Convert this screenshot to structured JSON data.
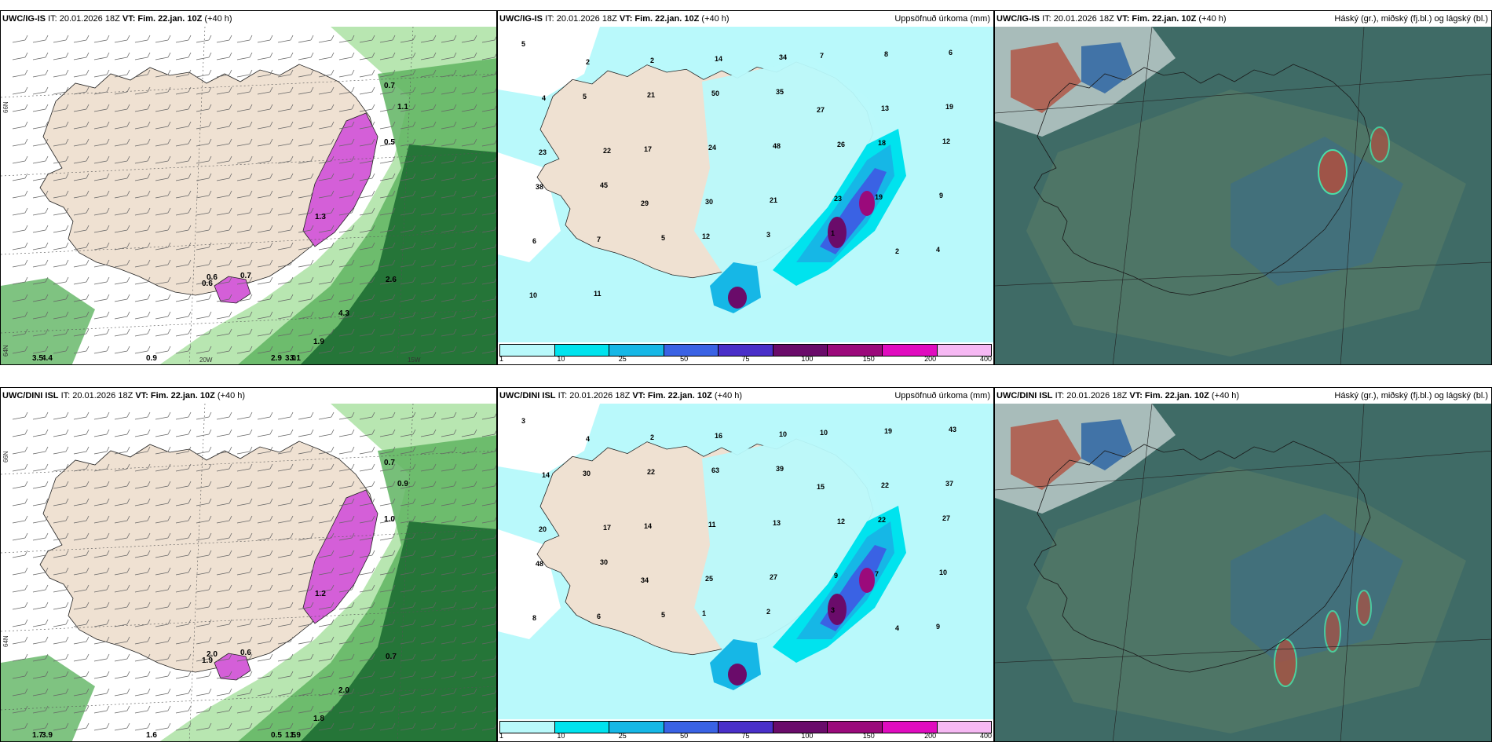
{
  "panels": [
    {
      "id": "top-wind",
      "model": "UWC/IG-IS",
      "it": "IT: 20.01.2026 18Z",
      "vt": "VT: Fim. 22.jan. 10Z",
      "lead": "(+40 h)",
      "right_title": ""
    },
    {
      "id": "top-precip",
      "model": "UWC/IG-IS",
      "it": "IT: 20.01.2026 18Z",
      "vt": "VT: Fim. 22.jan. 10Z",
      "lead": "(+40 h)",
      "right_title": "Uppsöfnuð úrkoma (mm)"
    },
    {
      "id": "top-cloud",
      "model": "UWC/IG-IS",
      "it": "IT: 20.01.2026 18Z",
      "vt": "VT: Fim. 22.jan. 10Z",
      "lead": "(+40 h)",
      "right_title": "Háský (gr.), miðský (fj.bl.) og lágský (bl.)"
    },
    {
      "id": "bottom-wind",
      "model": "UWC/DINI ISL",
      "it": "IT: 20.01.2026 18Z",
      "vt": "VT: Fim. 22.jan. 10Z",
      "lead": "(+40 h)",
      "right_title": ""
    },
    {
      "id": "bottom-precip",
      "model": "UWC/DINI ISL",
      "it": "IT: 20.01.2026 18Z",
      "vt": "VT: Fim. 22.jan. 10Z",
      "lead": "(+40 h)",
      "right_title": "Uppsöfnuð úrkoma (mm)"
    },
    {
      "id": "bottom-cloud",
      "model": "UWC/DINI ISL",
      "it": "IT: 20.01.2026 18Z",
      "vt": "VT: Fim. 22.jan. 10Z",
      "lead": "(+40 h)",
      "right_title": "Háský (gr.), miðský (fj.bl.) og lágský (bl.)"
    }
  ],
  "axis_labels": {
    "lat66": "66N",
    "lat64": "64N",
    "lon20": "20W",
    "lon15": "15W"
  },
  "precip_colorbar": {
    "labels": [
      "1",
      "10",
      "25",
      "50",
      "75",
      "100",
      "150",
      "200",
      "400"
    ],
    "colors": [
      "#b9f9fb",
      "#00e3ee",
      "#16b7e6",
      "#3a62e4",
      "#4a2fc9",
      "#6a0b6a",
      "#9b0a7b",
      "#e00cbf",
      "#f6b8f3"
    ]
  },
  "colors": {
    "land": "#efe1d2",
    "precip_light": "#b9f9fb",
    "wind_green_light": "#b8e6b1",
    "wind_green_mid": "#5fb461",
    "wind_green_dark": "#1d6d32",
    "snow_magenta": "#d45fd8",
    "cloud_base": "#3f6b66",
    "cloud_mid": "#527867",
    "cloud_blue": "#2f66a3",
    "cloud_red": "#b05040"
  },
  "wind_labels_top": [
    "0.7",
    "1.1",
    "0.5",
    "0.6",
    "1.3",
    "2.6",
    "4.3",
    "1.9",
    "0.9",
    "0.6",
    "0.7",
    "2.9",
    "3.1",
    "3.0",
    "3.5",
    "4.4"
  ],
  "wind_labels_bottom": [
    "0.7",
    "0.9",
    "1.0",
    "2.0",
    "1.2",
    "0.7",
    "2.0",
    "1.8",
    "1.6",
    "1.9",
    "0.6",
    "0.5",
    "1.9",
    "1.5",
    "1.7",
    "3.9"
  ],
  "precip_labels_top": [
    "5",
    "2",
    "2",
    "14",
    "34",
    "7",
    "8",
    "6",
    "4",
    "5",
    "21",
    "50",
    "35",
    "27",
    "13",
    "19",
    "23",
    "22",
    "17",
    "24",
    "48",
    "26",
    "18",
    "12",
    "38",
    "45",
    "29",
    "30",
    "21",
    "23",
    "19",
    "9",
    "6",
    "7",
    "5",
    "12",
    "3",
    "1",
    "2",
    "4",
    "10",
    "11"
  ],
  "precip_labels_bottom": [
    "3",
    "4",
    "2",
    "16",
    "10",
    "10",
    "19",
    "43",
    "14",
    "30",
    "22",
    "63",
    "39",
    "15",
    "22",
    "37",
    "20",
    "17",
    "14",
    "11",
    "13",
    "12",
    "22",
    "27",
    "48",
    "30",
    "34",
    "25",
    "27",
    "9",
    "7",
    "10",
    "8",
    "6",
    "5",
    "1",
    "2",
    "3",
    "4",
    "9"
  ]
}
